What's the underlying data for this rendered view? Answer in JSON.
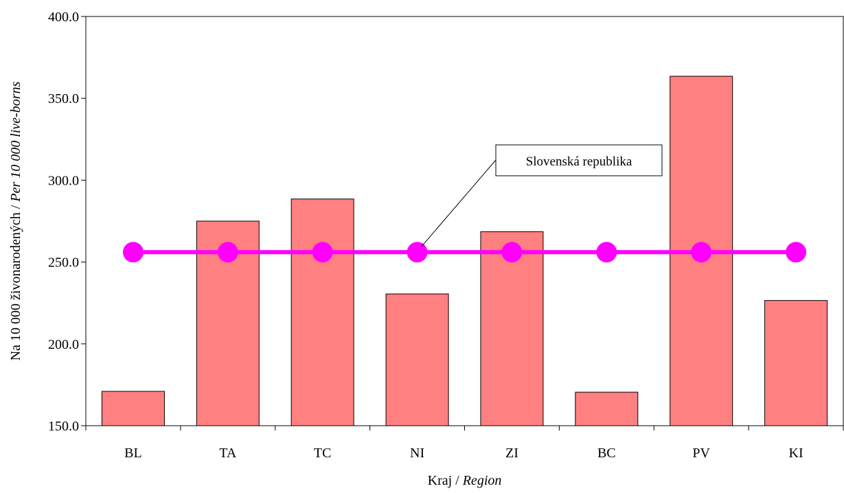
{
  "chart_data": {
    "type": "bar",
    "categories": [
      "BL",
      "TA",
      "TC",
      "NI",
      "ZI",
      "BC",
      "PV",
      "KI"
    ],
    "series": [
      {
        "type": "bar",
        "values": [
          171.0,
          275.0,
          288.5,
          230.5,
          268.5,
          170.5,
          363.5,
          226.5
        ],
        "color": "#FF8080"
      },
      {
        "type": "line",
        "values": [
          256.0,
          256.0,
          256.0,
          256.0,
          256.0,
          256.0,
          256.0,
          256.0
        ],
        "color": "#FF00FF"
      }
    ],
    "ylim": [
      150.0,
      400.0
    ],
    "yticks": [
      "150.0",
      "200.0",
      "250.0",
      "300.0",
      "350.0",
      "400.0"
    ],
    "xlabel_plain": "Kraj / ",
    "xlabel_italic": "Region",
    "ylabel_plain": "Na 10 000 živonarodených / ",
    "ylabel_italic": "Per 10 000 live-borns",
    "annotation": "Slovenská republika",
    "grid": false
  }
}
